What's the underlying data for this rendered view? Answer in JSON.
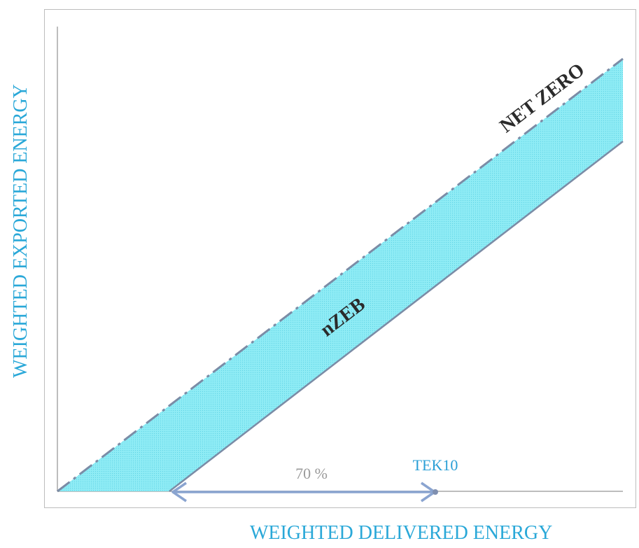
{
  "diagram": {
    "y_axis_label": "WEIGHTED EXPORTED ENERGY",
    "x_axis_label": "WEIGHTED DELIVERED ENERGY",
    "line_labels": {
      "net_zero": "NET ZERO",
      "nzeb": "nZEB"
    },
    "arrow_label": "70 %",
    "marker_label": "TEK10"
  },
  "colors": {
    "axis_text": "#2aa8d8",
    "band_fill": "#7fe6f2",
    "line": "#7b8ca6",
    "arrow": "#8aa4d0",
    "marker_text": "#2a9fd6",
    "percent_text": "#9a9a9a",
    "label_text": "#2b2b2b"
  }
}
